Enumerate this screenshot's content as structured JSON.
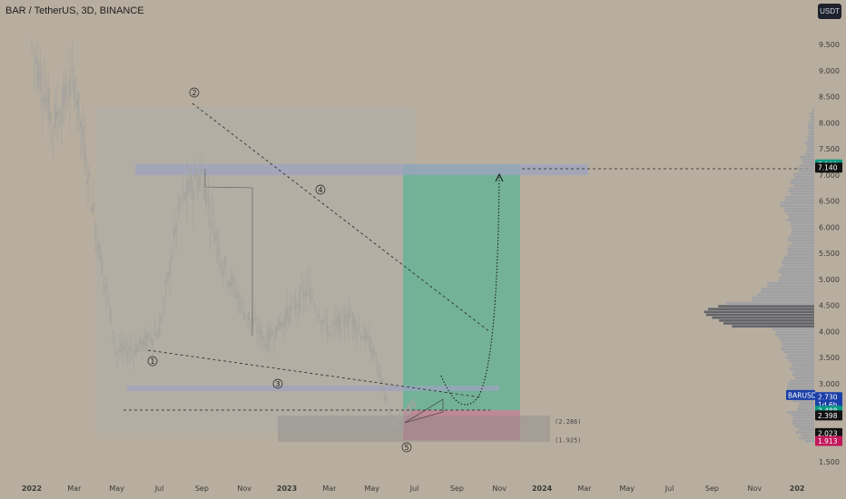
{
  "header": {
    "symbol_title": "BAR / TetherUS, 3D, BINANCE",
    "currency_button": "USDT"
  },
  "price_axis": {
    "ticks": [
      "9.500",
      "9.000",
      "8.500",
      "8.000",
      "7.500",
      "7.000",
      "6.500",
      "6.000",
      "5.500",
      "5.000",
      "4.500",
      "4.000",
      "3.500",
      "3.000",
      "1.500"
    ]
  },
  "price_badges": [
    {
      "label": "7.200",
      "price": 7.2,
      "bg": "#089981",
      "fg": "#ffffff"
    },
    {
      "label": "7.140",
      "price": 7.14,
      "bg": "#111111",
      "fg": "#ffffff"
    },
    {
      "label": "BARUSDT",
      "price": 2.78,
      "bg": "#1a3fa8",
      "fg": "#ffffff"
    },
    {
      "label": "2.730",
      "price": 2.74,
      "bg": "#1a3fa8",
      "fg": "#ffffff"
    },
    {
      "label": "1d 6h",
      "price": 2.6,
      "bg": "#1a3fa8",
      "fg": "#ffffff"
    },
    {
      "label": "2.488",
      "price": 2.48,
      "bg": "#089981",
      "fg": "#ffffff"
    },
    {
      "label": "2.398",
      "price": 2.39,
      "bg": "#111111",
      "fg": "#ffffff"
    },
    {
      "label": "2.023",
      "price": 2.05,
      "bg": "#111111",
      "fg": "#ffffff"
    },
    {
      "label": "1.913",
      "price": 1.9,
      "bg": "#c2185b",
      "fg": "#ffffff"
    }
  ],
  "time_axis": {
    "labels": [
      {
        "text": "2022",
        "bold": true
      },
      {
        "text": "Mar",
        "bold": false
      },
      {
        "text": "May",
        "bold": false
      },
      {
        "text": "Jul",
        "bold": false
      },
      {
        "text": "Sep",
        "bold": false
      },
      {
        "text": "Nov",
        "bold": false
      },
      {
        "text": "2023",
        "bold": true
      },
      {
        "text": "Mar",
        "bold": false
      },
      {
        "text": "May",
        "bold": false
      },
      {
        "text": "Jul",
        "bold": false
      },
      {
        "text": "Sep",
        "bold": false
      },
      {
        "text": "Nov",
        "bold": false
      },
      {
        "text": "2024",
        "bold": true
      },
      {
        "text": "Mar",
        "bold": false
      },
      {
        "text": "May",
        "bold": false
      },
      {
        "text": "Jul",
        "bold": false
      },
      {
        "text": "Sep",
        "bold": false
      },
      {
        "text": "Nov",
        "bold": false
      },
      {
        "text": "202",
        "bold": true
      }
    ]
  },
  "annotations": {
    "wave_labels": [
      "1",
      "2",
      "3",
      "4",
      "5"
    ],
    "box_labels": [
      "(2.286)",
      "(1.925)"
    ]
  },
  "colors": {
    "background": "#b8ae9f",
    "candle": "#a5a39d",
    "long_target_zone": "#4fb394",
    "long_stop_zone": "#c07e94",
    "resistance_zone": "#9ea3c0",
    "volume_profile": "#9a9da6",
    "volume_profile_poc": "#5d6068"
  },
  "chart_data": {
    "type": "candlestick",
    "symbol": "BAR / TetherUS, 3D, BINANCE",
    "approx_close_path": [
      {
        "date": "2022-01",
        "price": 9.5
      },
      {
        "date": "2022-02",
        "price": 8.0
      },
      {
        "date": "2022-03",
        "price": 8.8
      },
      {
        "date": "2022-04",
        "price": 6.0
      },
      {
        "date": "2022-05",
        "price": 3.6
      },
      {
        "date": "2022-06",
        "price": 3.7
      },
      {
        "date": "2022-07",
        "price": 4.0
      },
      {
        "date": "2022-08",
        "price": 6.5
      },
      {
        "date": "2022-09",
        "price": 7.0
      },
      {
        "date": "2022-10",
        "price": 5.3
      },
      {
        "date": "2022-11",
        "price": 4.4
      },
      {
        "date": "2022-12",
        "price": 3.8
      },
      {
        "date": "2023-01",
        "price": 4.3
      },
      {
        "date": "2023-02",
        "price": 4.8
      },
      {
        "date": "2023-03",
        "price": 4.0
      },
      {
        "date": "2023-04",
        "price": 4.3
      },
      {
        "date": "2023-05",
        "price": 3.7
      },
      {
        "date": "2023-06",
        "price": 2.2
      },
      {
        "date": "2023-07",
        "price": 2.6
      }
    ],
    "position_long": {
      "entry": 2.488,
      "target": 7.2,
      "stop": 1.913
    },
    "levels": [
      7.14,
      2.286,
      1.925,
      2.398,
      2.023
    ]
  }
}
